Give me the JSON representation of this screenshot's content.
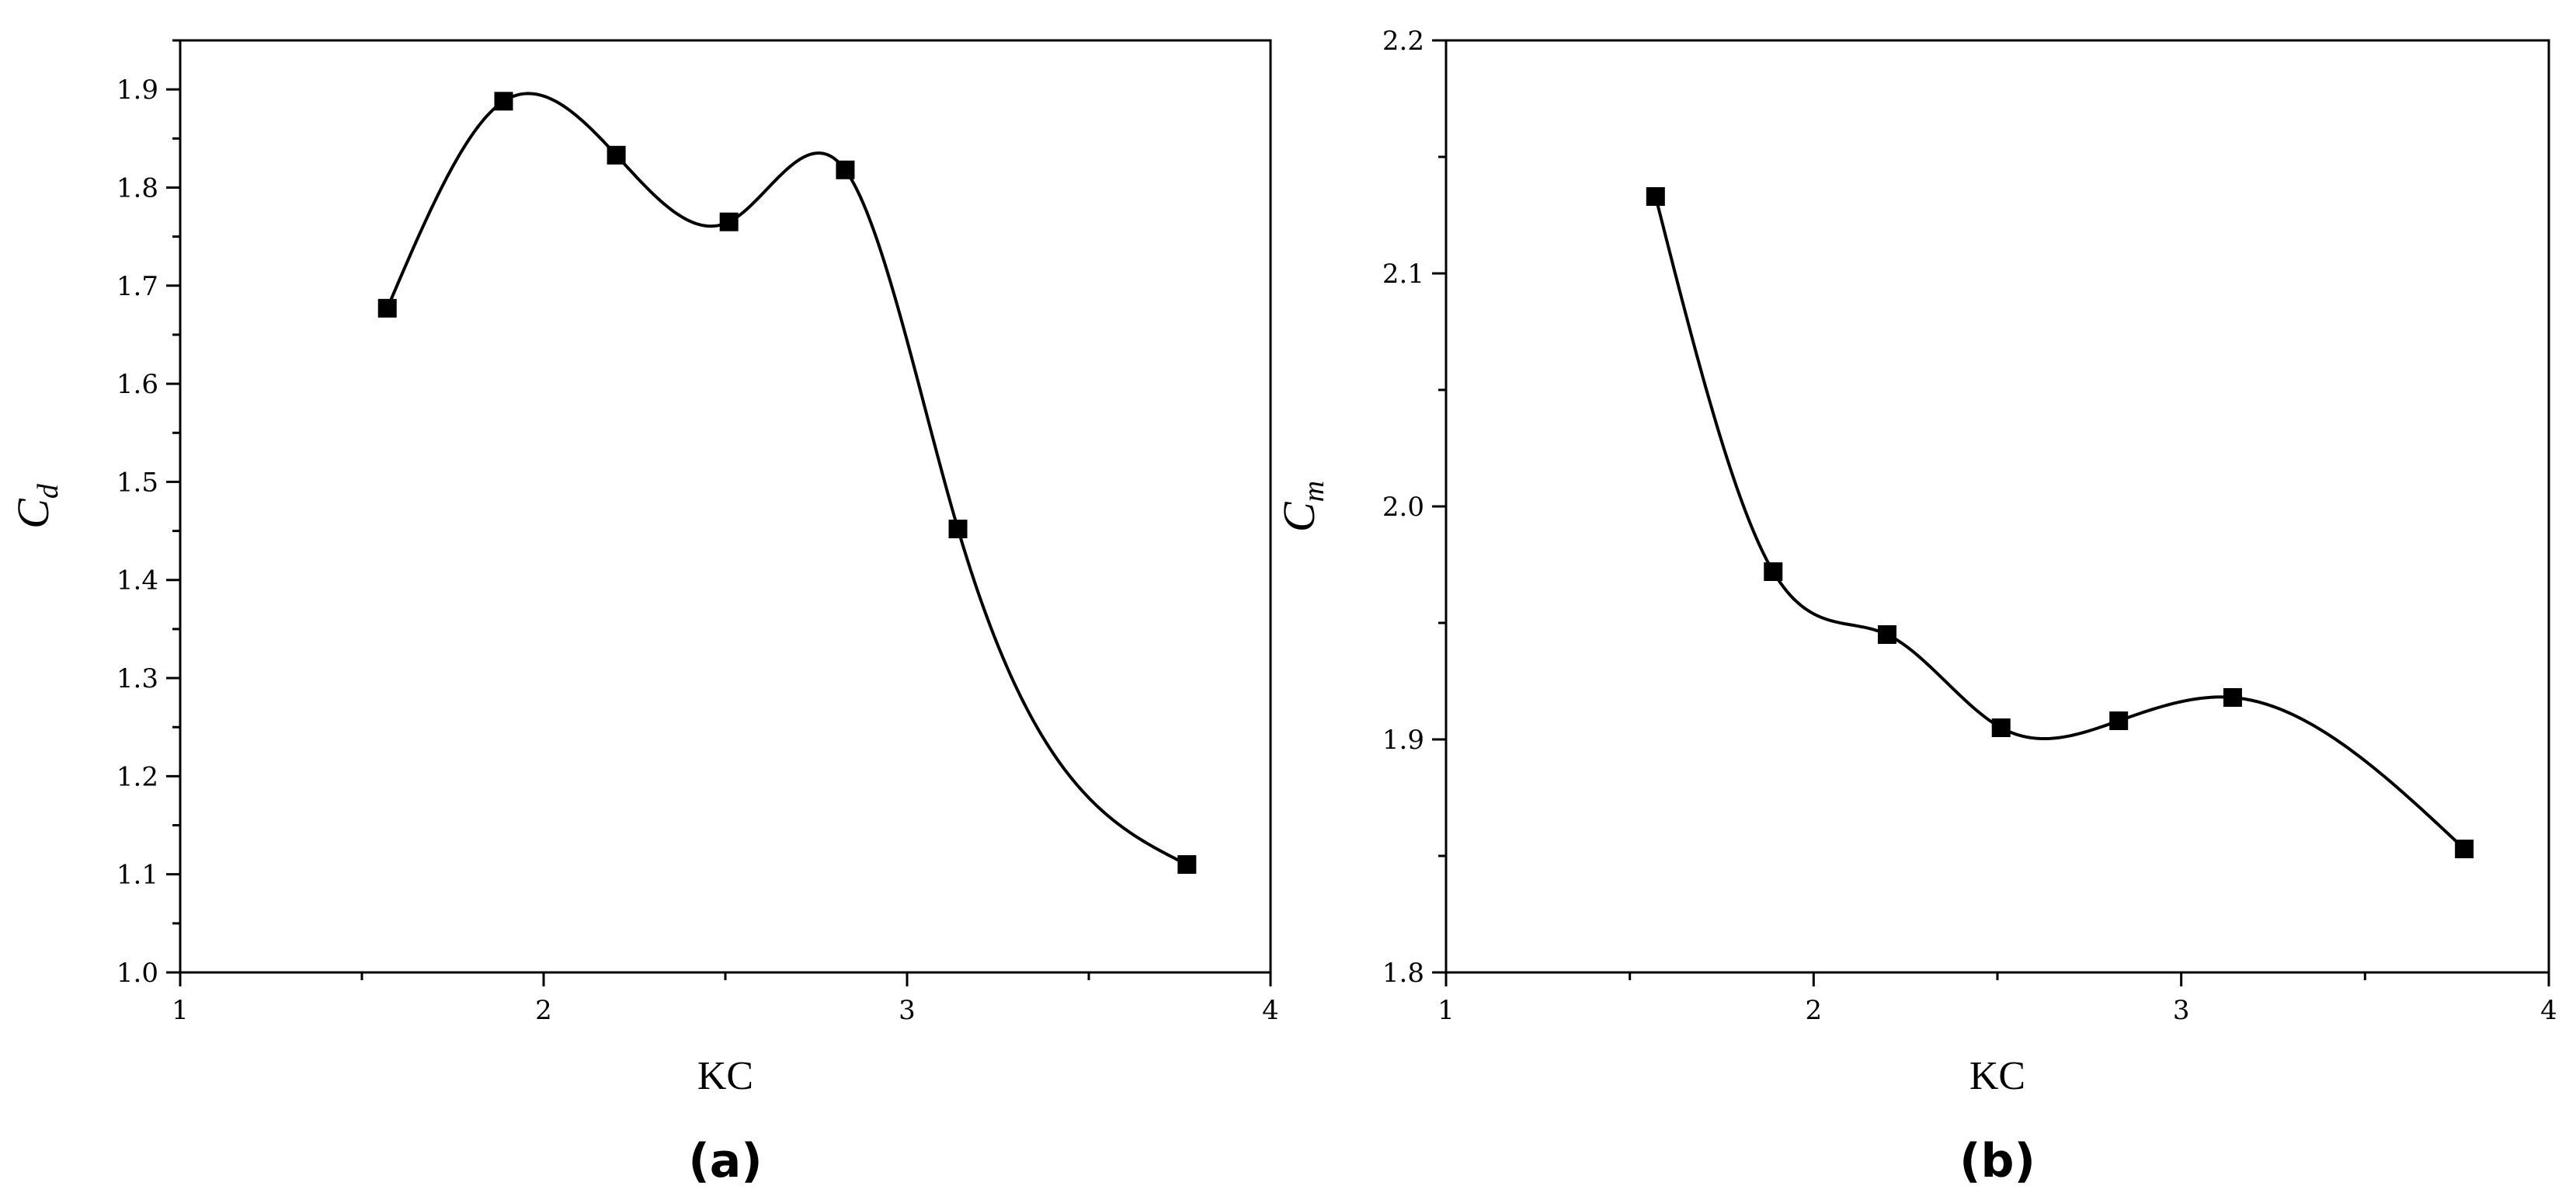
{
  "chart_data": [
    {
      "type": "line",
      "panel_label": "(a)",
      "xlabel": "KC",
      "ylabel_main": "C",
      "ylabel_sub": "d",
      "xlim": [
        1,
        4
      ],
      "ylim": [
        1.0,
        1.95
      ],
      "x_ticks": [
        1,
        2,
        3,
        4
      ],
      "x_tick_labels": [
        "1",
        "2",
        "3",
        "4"
      ],
      "y_ticks": [
        1.0,
        1.1,
        1.2,
        1.3,
        1.4,
        1.5,
        1.6,
        1.7,
        1.8,
        1.9
      ],
      "y_tick_labels": [
        "1.0",
        "1.1",
        "1.2",
        "1.3",
        "1.4",
        "1.5",
        "1.6",
        "1.7",
        "1.8",
        "1.9"
      ],
      "grid": false,
      "series": [
        {
          "x": [
            1.57,
            1.89,
            2.2,
            2.51,
            2.83,
            3.14,
            3.77
          ],
          "y": [
            1.677,
            1.888,
            1.833,
            1.765,
            1.818,
            1.452,
            1.11
          ]
        }
      ]
    },
    {
      "type": "line",
      "panel_label": "(b)",
      "xlabel": "KC",
      "ylabel_main": "C",
      "ylabel_sub": "m",
      "xlim": [
        1,
        4
      ],
      "ylim": [
        1.8,
        2.2
      ],
      "x_ticks": [
        1,
        2,
        3,
        4
      ],
      "x_tick_labels": [
        "1",
        "2",
        "3",
        "4"
      ],
      "y_ticks": [
        1.8,
        1.9,
        2.0,
        2.1,
        2.2
      ],
      "y_tick_labels": [
        "1.8",
        "1.9",
        "2.0",
        "2.1",
        "2.2"
      ],
      "grid": false,
      "series": [
        {
          "x": [
            1.57,
            1.89,
            2.2,
            2.51,
            2.83,
            3.14,
            3.77
          ],
          "y": [
            2.133,
            1.972,
            1.945,
            1.905,
            1.908,
            1.918,
            1.853
          ]
        }
      ]
    }
  ]
}
